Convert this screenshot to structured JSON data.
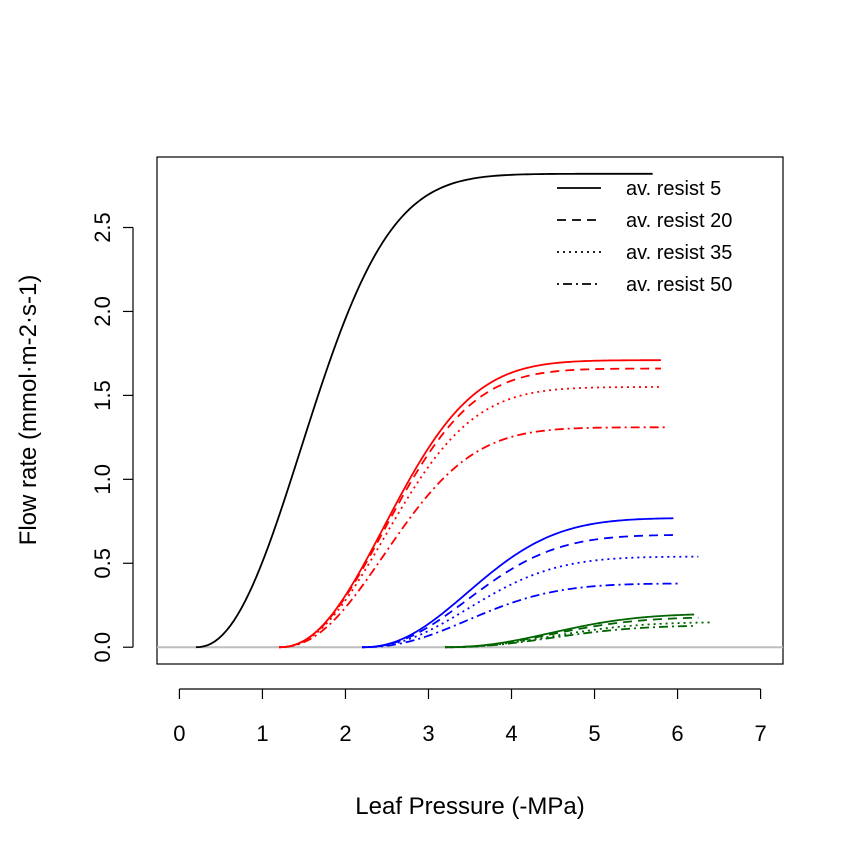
{
  "chart_data": {
    "type": "line",
    "title": "",
    "xlabel": "Leaf Pressure (-MPa)",
    "ylabel": "Flow rate  (mmol·m-2·s-1)",
    "xlim": [
      -0.27,
      7.27
    ],
    "ylim": [
      -0.1,
      2.92
    ],
    "xticks": [
      "0",
      "1",
      "2",
      "3",
      "4",
      "5",
      "6",
      "7"
    ],
    "yticks": [
      "0.0",
      "0.5",
      "1.0",
      "1.5",
      "2.0",
      "2.5"
    ],
    "reference_line": {
      "y": 0,
      "color": "#bebebe"
    },
    "grid": false,
    "legend": {
      "position": "top-right",
      "entries": [
        {
          "label": "av. resist  5",
          "linestyle": "solid"
        },
        {
          "label": "av. resist  20",
          "linestyle": "dashed"
        },
        {
          "label": "av. resist  35",
          "linestyle": "dotted"
        },
        {
          "label": "av. resist  50",
          "linestyle": "dotdash"
        }
      ]
    },
    "series": [
      {
        "color": "#000000",
        "linestyle": "solid",
        "x0": 0.2,
        "x_end": 5.7,
        "plateau": 2.82
      },
      {
        "color": "#ff0000",
        "linestyle": "solid",
        "x0": 1.2,
        "x_end": 5.8,
        "plateau": 1.71
      },
      {
        "color": "#ff0000",
        "linestyle": "dashed",
        "x0": 1.2,
        "x_end": 5.8,
        "plateau": 1.66
      },
      {
        "color": "#ff0000",
        "linestyle": "dotted",
        "x0": 1.2,
        "x_end": 5.8,
        "plateau": 1.55
      },
      {
        "color": "#ff0000",
        "linestyle": "dotdash",
        "x0": 1.2,
        "x_end": 5.85,
        "plateau": 1.31
      },
      {
        "color": "#0000ff",
        "linestyle": "solid",
        "x0": 2.2,
        "x_end": 5.95,
        "plateau": 0.77
      },
      {
        "color": "#0000ff",
        "linestyle": "dashed",
        "x0": 2.2,
        "x_end": 5.95,
        "plateau": 0.67
      },
      {
        "color": "#0000ff",
        "linestyle": "dotted",
        "x0": 2.2,
        "x_end": 6.25,
        "plateau": 0.54
      },
      {
        "color": "#0000ff",
        "linestyle": "dotdash",
        "x0": 2.2,
        "x_end": 6.0,
        "plateau": 0.38
      },
      {
        "color": "#006400",
        "linestyle": "solid",
        "x0": 3.2,
        "x_end": 6.2,
        "plateau": 0.2
      },
      {
        "color": "#006400",
        "linestyle": "dashed",
        "x0": 3.2,
        "x_end": 6.25,
        "plateau": 0.18
      },
      {
        "color": "#006400",
        "linestyle": "dotted",
        "x0": 3.2,
        "x_end": 6.4,
        "plateau": 0.15
      },
      {
        "color": "#006400",
        "linestyle": "dotdash",
        "x0": 3.2,
        "x_end": 6.2,
        "plateau": 0.13
      }
    ]
  }
}
